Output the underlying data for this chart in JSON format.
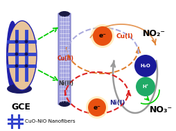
{
  "bg_color": "white",
  "gce_disk_color": "#e8c49a",
  "gce_side_color": "#2222aa",
  "gce_label": "GCE",
  "fiber_color": "#9999dd",
  "fiber_edge": "#6666bb",
  "cu_ii_label": "Cu(II)",
  "cu_i_label": "Cu(I)",
  "ni_ii_label": "Ni(II)",
  "ni_i_label": "Ni(I)",
  "no2_label": "NO₂⁻",
  "no3_label": "NO₃⁻",
  "h2o_label": "H₂O",
  "hp_label": "H⁺",
  "legend_label": "CuO-NiO Nanofibers",
  "orange_ball": "#e85010",
  "blue_ball": "#1a1a99",
  "teal_ball": "#20aa66",
  "electron_label": "e⁻",
  "arrow_orange": "#e08030",
  "arrow_red": "#dd2222",
  "arrow_gray": "#999999",
  "arrow_green": "#00cc00",
  "arrow_purple": "#aaaadd",
  "cross_color": "#3344cc",
  "cu_ii_color": "#cc2200",
  "ni_ii_color": "#333333",
  "cu_i_color": "#dd3300",
  "ni_i_color": "#222288"
}
